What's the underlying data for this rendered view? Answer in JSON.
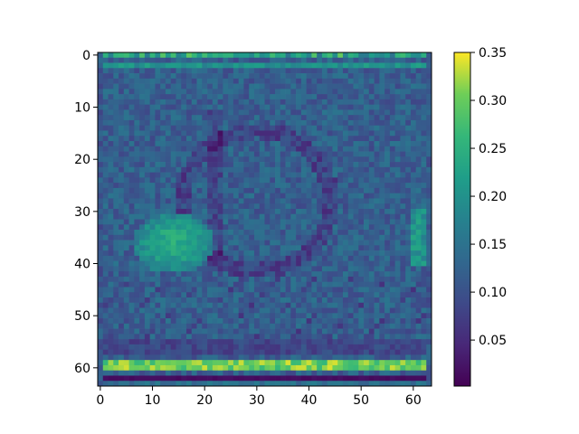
{
  "chart_data": {
    "type": "heatmap",
    "title": "",
    "xlabel": "",
    "ylabel": "",
    "grid_size": 64,
    "x_ticks": [
      0,
      10,
      20,
      30,
      40,
      50,
      60
    ],
    "x_tick_labels": [
      "0",
      "10",
      "20",
      "30",
      "40",
      "50",
      "60"
    ],
    "y_ticks": [
      0,
      10,
      20,
      30,
      40,
      50,
      60
    ],
    "y_tick_labels": [
      "0",
      "10",
      "20",
      "30",
      "40",
      "50",
      "60"
    ],
    "xlim": [
      -0.5,
      63.5
    ],
    "ylim": [
      63.5,
      -0.5
    ],
    "colormap": "viridis",
    "colorbar": {
      "range": [
        0.002,
        0.35
      ],
      "ticks": [
        0.05,
        0.1,
        0.15,
        0.2,
        0.25,
        0.3,
        0.35
      ],
      "tick_labels": [
        "0.05",
        "0.10",
        "0.15",
        "0.20",
        "0.25",
        "0.30",
        "0.35"
      ]
    },
    "values_summary": {
      "background_level": 0.12,
      "bright_band_rows": [
        59,
        60
      ],
      "bright_band_value": 0.3,
      "dark_rows": [
        62
      ],
      "dark_row_value": 0.01,
      "left_highlight_region": {
        "x": [
          6,
          22
        ],
        "y": [
          30,
          42
        ],
        "value": 0.24
      }
    }
  }
}
